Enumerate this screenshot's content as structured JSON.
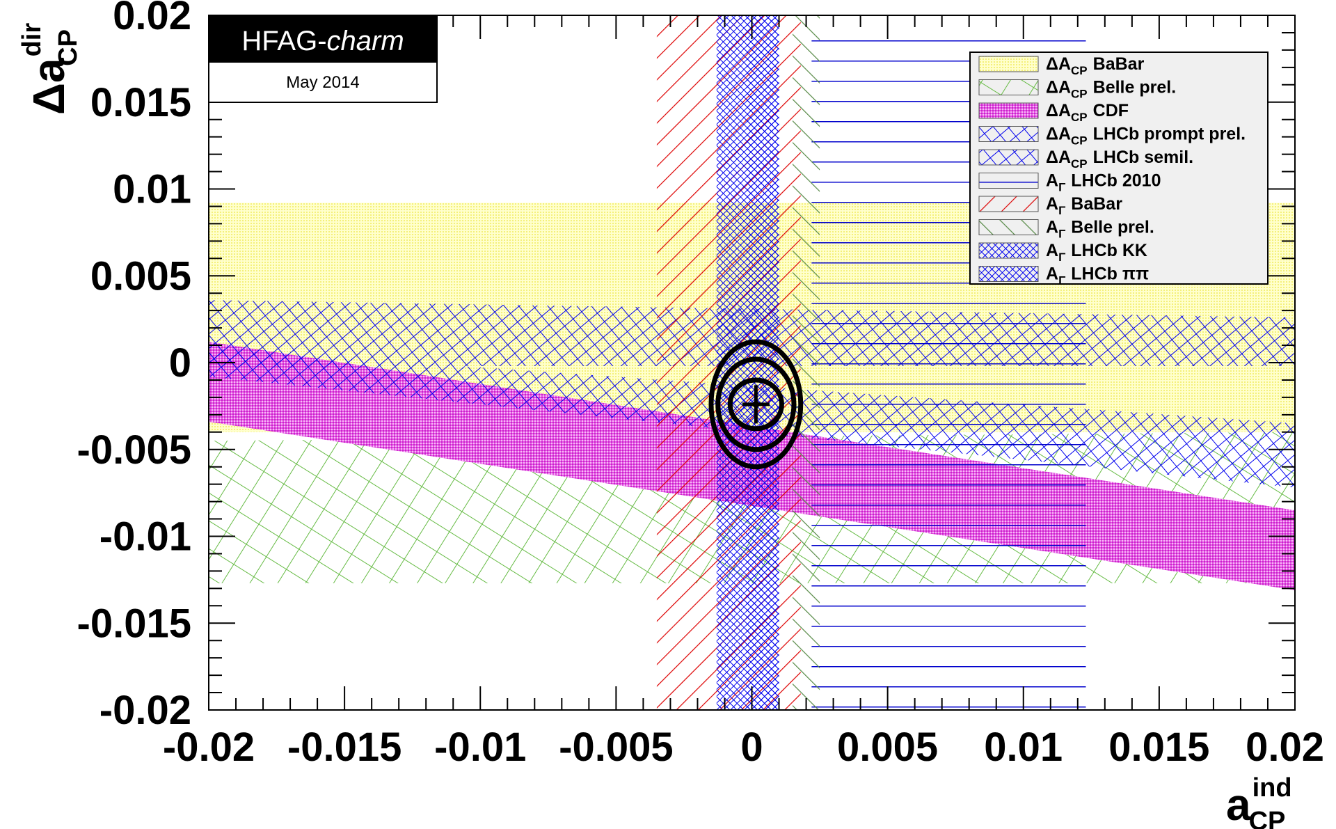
{
  "logo": {
    "title": "HFAG-",
    "title_italic": "charm",
    "date": "May 2014"
  },
  "chart_data": {
    "type": "contour",
    "xlabel_main": "a",
    "xlabel_sup": "ind",
    "xlabel_sub": "CP",
    "ylabel_main": "Δa",
    "ylabel_sup": "dir",
    "ylabel_sub": "CP",
    "xlim": [
      -0.02,
      0.02
    ],
    "ylim": [
      -0.02,
      0.02
    ],
    "x_ticks": [
      {
        "value": -0.02,
        "label": "-0.02"
      },
      {
        "value": -0.015,
        "label": "-0.015"
      },
      {
        "value": -0.01,
        "label": "-0.01"
      },
      {
        "value": -0.005,
        "label": "-0.005"
      },
      {
        "value": 0,
        "label": "0"
      },
      {
        "value": 0.005,
        "label": "0.005"
      },
      {
        "value": 0.01,
        "label": "0.01"
      },
      {
        "value": 0.015,
        "label": "0.015"
      },
      {
        "value": 0.02,
        "label": "0.02"
      }
    ],
    "y_ticks": [
      {
        "value": 0.02,
        "label": "0.02"
      },
      {
        "value": 0.015,
        "label": "0.015"
      },
      {
        "value": 0.01,
        "label": "0.01"
      },
      {
        "value": 0.005,
        "label": "0.005"
      },
      {
        "value": 0,
        "label": "0"
      },
      {
        "value": -0.005,
        "label": "-0.005"
      },
      {
        "value": -0.01,
        "label": "-0.01"
      },
      {
        "value": -0.015,
        "label": "-0.015"
      },
      {
        "value": -0.02,
        "label": "-0.02"
      }
    ],
    "dacp_bands": [
      {
        "name": "BaBar",
        "color": "#ffff99",
        "pattern": "yellow-dots",
        "y_at_xmin": [
          -0.004,
          0.0092
        ],
        "y_at_xmax": [
          -0.004,
          0.0092
        ],
        "x_range": [
          -0.02,
          0.02
        ]
      },
      {
        "name": "Belle prel.",
        "color": "#66bb44",
        "pattern": "green-grid",
        "y_at_xmin": [
          -0.0127,
          -0.0045
        ],
        "y_at_xmax": [
          -0.0127,
          -0.004
        ],
        "x_range": [
          -0.02,
          0.02
        ]
      },
      {
        "name": "CDF",
        "color": "#ee00ee",
        "pattern": "magenta-dense",
        "y_at_xmin": [
          -0.0034,
          0.0012
        ],
        "y_at_xmax": [
          -0.0131,
          -0.0085
        ],
        "x_range": [
          -0.02,
          0.02
        ]
      },
      {
        "name": "LHCb prompt prel.",
        "color": "#0000ee",
        "pattern": "blue-crosshatch",
        "y_at_xmin": [
          -0.0002,
          0.0036
        ],
        "y_at_xmax": [
          -0.0002,
          0.0026
        ],
        "x_range": [
          -0.02,
          0.02
        ]
      },
      {
        "name": "LHCb semil.",
        "color": "#0000ee",
        "pattern": "blue-crosshatch",
        "y_at_xmin": [
          -0.0008,
          0.0008
        ],
        "y_at_xmax": [
          -0.0072,
          -0.0035
        ],
        "x_range": [
          -0.02,
          0.02
        ]
      }
    ],
    "agamma_bands": [
      {
        "name": "LHCb 2010",
        "color": "#0000cc",
        "pattern": "horizontal-lines",
        "x_range": [
          0.0022,
          0.0123
        ],
        "y_range": [
          -0.02,
          0.019
        ]
      },
      {
        "name": "BaBar",
        "color": "#dd0000",
        "pattern": "red-diagonal",
        "x_range": [
          -0.0035,
          0.0018
        ],
        "y_range": [
          -0.02,
          0.02
        ]
      },
      {
        "name": "Belle prel.",
        "color": "#558844",
        "pattern": "green-diagonal",
        "x_range": [
          0.0015,
          0.0025
        ],
        "y_range": [
          -0.02,
          0.02
        ]
      },
      {
        "name": "LHCb KK",
        "color": "#0000ee",
        "pattern": "blue-dense",
        "x_range": [
          -0.0013,
          0.001
        ],
        "y_range": [
          -0.02,
          0.02
        ]
      },
      {
        "name": "LHCb ππ",
        "color": "#0000ee",
        "pattern": "blue-dense",
        "x_range": [
          -0.0002,
          0.001
        ],
        "y_range": [
          -0.02,
          0.02
        ]
      }
    ],
    "fit": {
      "center": [
        0.00015,
        -0.0024
      ],
      "contours": [
        {
          "rx": 0.00095,
          "ry": 0.0014
        },
        {
          "rx": 0.0014,
          "ry": 0.0026
        },
        {
          "rx": 0.00165,
          "ry": 0.0036
        }
      ],
      "error_bar_x": 0.0005,
      "error_bar_y": 0.0011
    },
    "legend": {
      "position": "top-right",
      "entries": [
        {
          "main": "ΔA",
          "sub": "CP",
          "label": "BaBar",
          "pattern": "yellow-dots"
        },
        {
          "main": "ΔA",
          "sub": "CP",
          "label": "Belle prel.",
          "pattern": "green-grid"
        },
        {
          "main": "ΔA",
          "sub": "CP",
          "label": "CDF",
          "pattern": "magenta-dense"
        },
        {
          "main": "ΔA",
          "sub": "CP",
          "label": "LHCb prompt prel.",
          "pattern": "blue-crosshatch"
        },
        {
          "main": "ΔA",
          "sub": "CP",
          "label": "LHCb semil.",
          "pattern": "blue-crosshatch"
        },
        {
          "main": "A",
          "sub": "Γ",
          "label": "LHCb 2010",
          "pattern": "horizontal-lines"
        },
        {
          "main": "A",
          "sub": "Γ",
          "label": "BaBar",
          "pattern": "red-diagonal"
        },
        {
          "main": "A",
          "sub": "Γ",
          "label": "Belle prel.",
          "pattern": "green-diagonal"
        },
        {
          "main": "A",
          "sub": "Γ",
          "label": "LHCb KK",
          "pattern": "blue-dense"
        },
        {
          "main": "A",
          "sub": "Γ",
          "label": "LHCb ππ",
          "pattern": "blue-dense"
        }
      ]
    }
  }
}
